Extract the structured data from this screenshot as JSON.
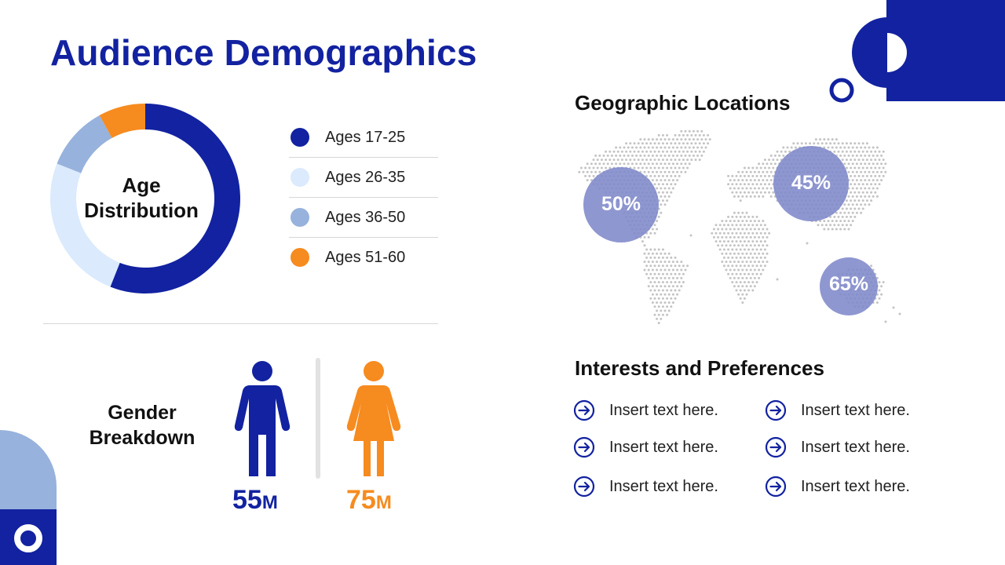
{
  "title": "Audience Demographics",
  "colors": {
    "primary": "#1222a0",
    "light_blue": "#dbeafd",
    "mid_blue": "#97b2dc",
    "orange": "#f68b1f",
    "bubble": "#7f89cb",
    "map_dots": "#c4c4c4"
  },
  "age": {
    "center_line1": "Age",
    "center_line2": "Distribution",
    "segments": [
      {
        "label": "Ages 17-25",
        "share": 0.56,
        "color": "#1222a0"
      },
      {
        "label": "Ages 26-35",
        "share": 0.25,
        "color": "#dbeafd"
      },
      {
        "label": "Ages 36-50",
        "share": 0.11,
        "color": "#97b2dc"
      },
      {
        "label": "Ages 51-60",
        "share": 0.08,
        "color": "#f68b1f"
      }
    ]
  },
  "gender": {
    "title_line1": "Gender",
    "title_line2": "Breakdown",
    "male": {
      "value": "55",
      "unit": "M",
      "icon": "male-person-icon"
    },
    "female": {
      "value": "75",
      "unit": "M",
      "icon": "female-person-icon"
    }
  },
  "geo": {
    "title": "Geographic Locations",
    "regions": [
      {
        "label": "50%"
      },
      {
        "label": "45%"
      },
      {
        "label": "65%"
      }
    ]
  },
  "interests": {
    "title": "Interests and Preferences",
    "icon": "arrow-right-circle-icon",
    "items": [
      "Insert text here.",
      "Insert text here.",
      "Insert text here.",
      "Insert text here.",
      "Insert text here.",
      "Insert text here."
    ]
  }
}
